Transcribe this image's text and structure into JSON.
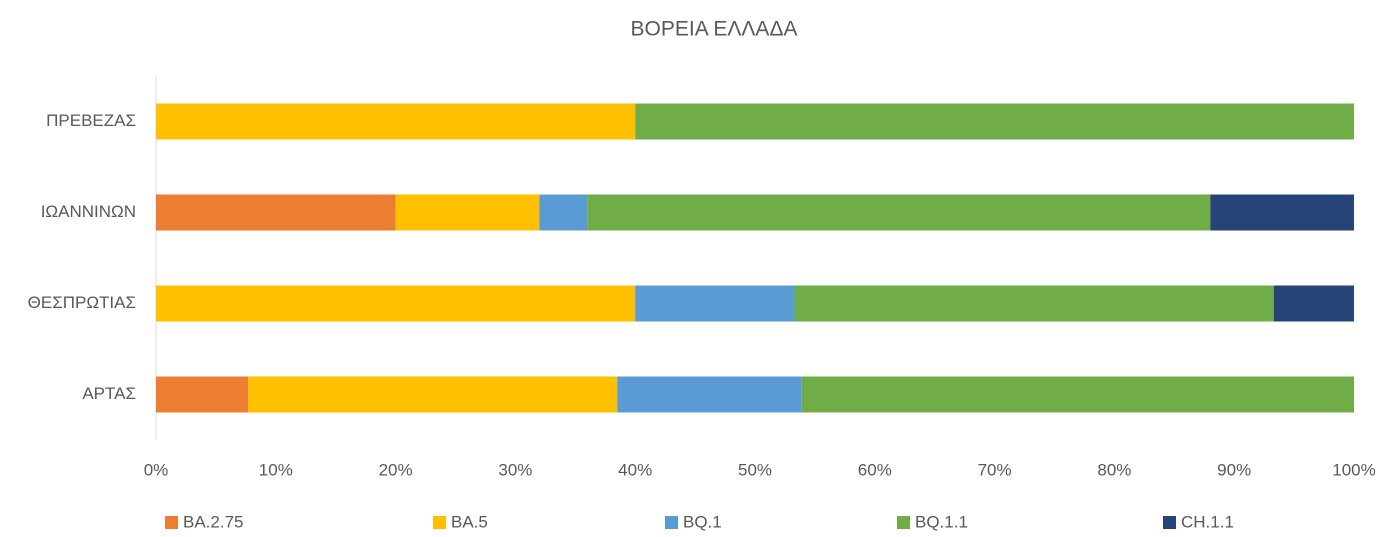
{
  "chart_data": {
    "type": "stacked-bar-horizontal",
    "title": "ΒΟΡΕΙΑ ΕΛΛΑΔΑ",
    "categories": [
      "ΑΡΤΑΣ",
      "ΘΕΣΠΡΩΤΙΑΣ",
      "ΙΩΑΝΝΙΝΩΝ",
      "ΠΡΕΒΕΖΑΣ"
    ],
    "series": [
      {
        "name": "BA.2.75",
        "color": "#ed7d31",
        "values": [
          7.7,
          0,
          20,
          0
        ]
      },
      {
        "name": "BA.5",
        "color": "#ffc000",
        "values": [
          30.8,
          40,
          12,
          40
        ]
      },
      {
        "name": "BQ.1",
        "color": "#5b9bd5",
        "values": [
          15.4,
          13.3,
          4,
          0
        ]
      },
      {
        "name": "BQ.1.1",
        "color": "#70ad47",
        "values": [
          46.1,
          40,
          52,
          60
        ]
      },
      {
        "name": "CH.1.1",
        "color": "#264478",
        "values": [
          0,
          6.7,
          12,
          0
        ]
      }
    ],
    "xlim": [
      0,
      100
    ],
    "xticks": [
      {
        "value": 0,
        "label": "0%"
      },
      {
        "value": 10,
        "label": "10%"
      },
      {
        "value": 20,
        "label": "20%"
      },
      {
        "value": 30,
        "label": "30%"
      },
      {
        "value": 40,
        "label": "40%"
      },
      {
        "value": 50,
        "label": "50%"
      },
      {
        "value": 60,
        "label": "60%"
      },
      {
        "value": 70,
        "label": "70%"
      },
      {
        "value": 80,
        "label": "80%"
      },
      {
        "value": 90,
        "label": "90%"
      },
      {
        "value": 100,
        "label": "100%"
      }
    ],
    "grid": false,
    "legend": "bottom"
  }
}
